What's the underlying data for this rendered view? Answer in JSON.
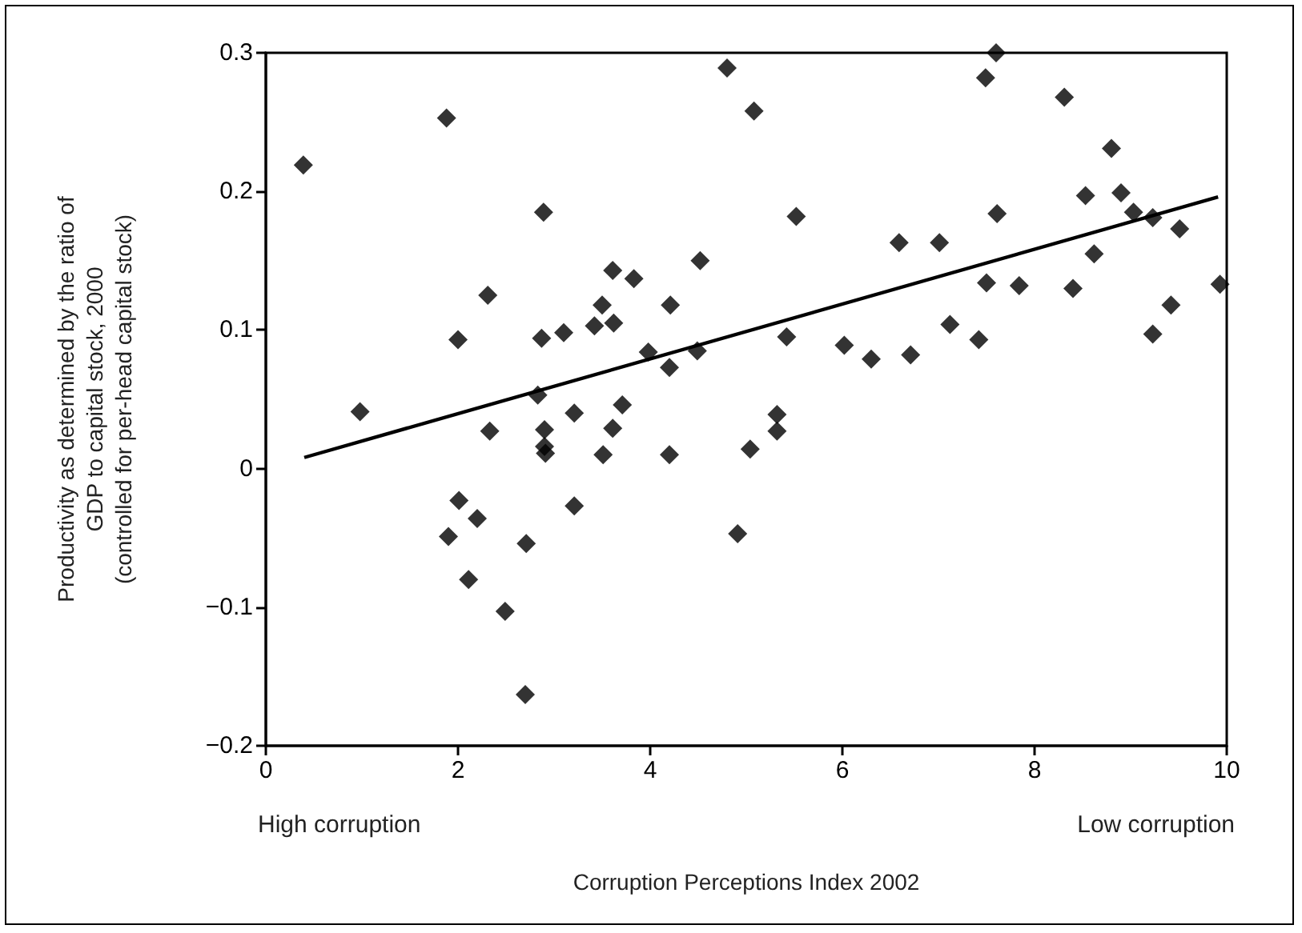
{
  "chart_data": {
    "type": "scatter",
    "xlabel": "Corruption Perceptions Index 2002",
    "ylabel": "Productivity as determined by the ratio of\nGDP to capital stock, 2000\n(controlled for per-head capital stock)",
    "annotations": [
      "High corruption",
      "Low corruption"
    ],
    "xlim": [
      0,
      10
    ],
    "xticks": [
      0,
      2,
      4,
      6,
      8,
      10
    ],
    "ylim": [
      -0.2,
      0.3
    ],
    "yticks": [
      {
        "value": -0.2,
        "label": "−0.2"
      },
      {
        "value": -0.1,
        "label": "−0.1"
      },
      0,
      0.1,
      0.2,
      0.3
    ],
    "grid": false,
    "marker": "diamond",
    "series": [
      {
        "type": "scatter",
        "color": "#000000",
        "x": [
          0.39,
          1.88,
          4.8,
          5.08,
          2.89,
          2.31,
          2.0,
          2.87,
          3.1,
          3.42,
          3.61,
          3.83,
          3.5,
          3.62,
          4.21,
          4.52,
          3.98,
          4.2,
          4.49,
          0.98,
          2.83,
          3.21,
          3.71,
          2.33,
          2.9,
          2.9,
          2.91,
          3.51,
          3.61,
          4.2,
          5.04,
          2.01,
          2.2,
          1.9,
          3.21,
          2.71,
          4.91,
          2.11,
          2.49,
          2.7,
          7.6,
          7.49,
          8.31,
          8.8,
          8.53,
          8.9,
          9.03,
          9.23,
          9.51,
          5.52,
          7.61,
          6.59,
          7.01,
          8.62,
          7.5,
          7.84,
          8.4,
          9.93,
          9.42,
          9.23,
          5.42,
          6.02,
          6.3,
          6.71,
          7.12,
          7.42,
          5.32,
          5.32
        ],
        "values": [
          0.219,
          0.253,
          0.289,
          0.258,
          0.185,
          0.125,
          0.093,
          0.094,
          0.098,
          0.103,
          0.143,
          0.137,
          0.118,
          0.105,
          0.118,
          0.15,
          0.084,
          0.073,
          0.085,
          0.041,
          0.053,
          0.04,
          0.046,
          0.027,
          0.028,
          0.016,
          0.011,
          0.01,
          0.029,
          0.01,
          0.014,
          -0.023,
          -0.036,
          -0.049,
          -0.027,
          -0.054,
          -0.047,
          -0.08,
          -0.103,
          -0.163,
          0.3,
          0.282,
          0.268,
          0.231,
          0.197,
          0.199,
          0.185,
          0.181,
          0.173,
          0.182,
          0.184,
          0.163,
          0.163,
          0.155,
          0.134,
          0.132,
          0.13,
          0.133,
          0.118,
          0.097,
          0.095,
          0.089,
          0.079,
          0.082,
          0.104,
          0.093,
          0.039,
          0.027
        ]
      },
      {
        "type": "line",
        "color": "#000000",
        "marker": "none",
        "x": [
          0.4,
          9.91
        ],
        "values": [
          0.008,
          0.196
        ]
      }
    ]
  }
}
